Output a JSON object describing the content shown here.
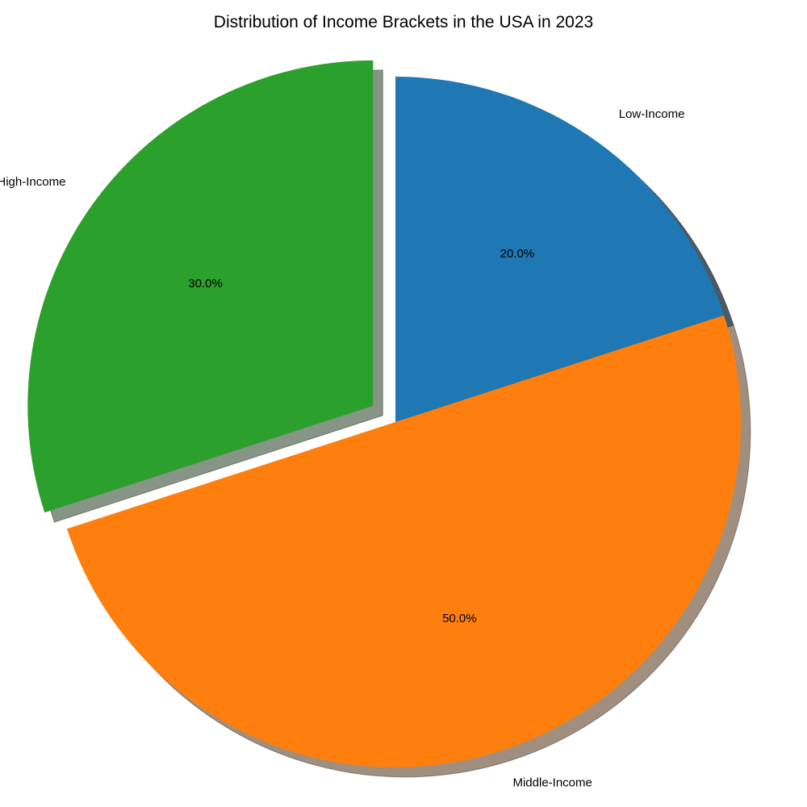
{
  "chart_data": {
    "type": "pie",
    "title": "Distribution of Income Brackets in the USA in 2023",
    "slices": [
      {
        "label": "Low-Income",
        "value": 20,
        "pct_label": "20.0%",
        "color": "#1f77b4",
        "shadow": "#4a5a66",
        "explode": 0
      },
      {
        "label": "Middle-Income",
        "value": 50,
        "pct_label": "50.0%",
        "color": "#ff7f0e",
        "shadow": "#a08f7e",
        "explode": 0
      },
      {
        "label": "High-Income",
        "value": 30,
        "pct_label": "30.0%",
        "color": "#2ca02c",
        "shadow": "#869585",
        "explode": 0.08
      }
    ],
    "start_angle": 90,
    "direction": "clockwise",
    "shadow": true
  }
}
